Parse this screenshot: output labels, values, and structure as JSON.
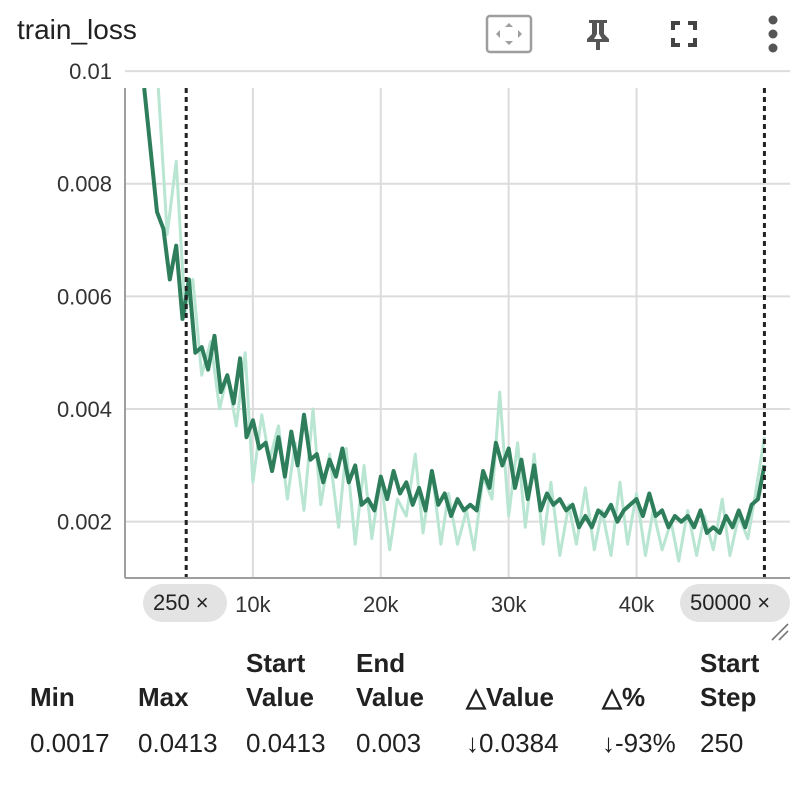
{
  "card": {
    "title": "train_loss",
    "icons": [
      "fit-domain-icon",
      "pin-icon",
      "fullscreen-icon",
      "more-vert-icon"
    ]
  },
  "chart_data": {
    "type": "line",
    "title": "train_loss",
    "xlabel": "",
    "ylabel": "",
    "xlim": [
      0,
      52000
    ],
    "ylim": [
      0.001,
      0.0097
    ],
    "x_ticks": [
      "10k",
      "20k",
      "30k",
      "40k"
    ],
    "y_ticks": [
      "0.002",
      "0.004",
      "0.006",
      "0.008",
      "0.01"
    ],
    "grid": true,
    "selection": {
      "start_step": 250,
      "end_step": 50000,
      "start_label": "250",
      "end_label": "50000",
      "close": "×"
    },
    "series": [
      {
        "role": "raw",
        "color": "#b9e5d3",
        "x": [
          2600,
          3300,
          4000,
          4700,
          5300,
          6000,
          6700,
          7400,
          8000,
          8700,
          9400,
          10000,
          10700,
          11300,
          12000,
          12700,
          13300,
          14000,
          14700,
          15300,
          16000,
          16700,
          17300,
          18000,
          18700,
          19300,
          20000,
          20700,
          21300,
          22000,
          22700,
          23300,
          24000,
          24700,
          25300,
          26000,
          26700,
          27300,
          28000,
          28700,
          29300,
          30000,
          30700,
          31300,
          32000,
          32700,
          33300,
          34000,
          34700,
          35300,
          36000,
          36700,
          37300,
          38000,
          38700,
          39300,
          40000,
          40700,
          41300,
          42000,
          42700,
          43300,
          44000,
          44700,
          45300,
          46000,
          46700,
          47300,
          48000,
          48700,
          49300,
          50000
        ],
        "y": [
          0.0097,
          0.0071,
          0.0084,
          0.0057,
          0.0063,
          0.0046,
          0.0052,
          0.004,
          0.0046,
          0.0037,
          0.005,
          0.0027,
          0.0039,
          0.0031,
          0.0037,
          0.0024,
          0.0034,
          0.0022,
          0.004,
          0.0023,
          0.0032,
          0.0019,
          0.0033,
          0.0016,
          0.003,
          0.0017,
          0.0028,
          0.0015,
          0.0024,
          0.0021,
          0.0032,
          0.0018,
          0.0029,
          0.0016,
          0.0025,
          0.0016,
          0.0022,
          0.0015,
          0.0028,
          0.0024,
          0.0043,
          0.0021,
          0.0034,
          0.0019,
          0.0032,
          0.0016,
          0.0027,
          0.0014,
          0.0023,
          0.0016,
          0.0026,
          0.0015,
          0.0022,
          0.0014,
          0.0027,
          0.0016,
          0.0025,
          0.0014,
          0.0022,
          0.0015,
          0.002,
          0.0013,
          0.0022,
          0.0014,
          0.0021,
          0.0015,
          0.0024,
          0.0014,
          0.0021,
          0.0017,
          0.0025,
          0.0035
        ]
      },
      {
        "role": "smoothed",
        "color": "#2e7d5b",
        "x": [
          1500,
          2500,
          3000,
          3500,
          4000,
          4500,
          5000,
          5500,
          6000,
          6500,
          7000,
          7500,
          8000,
          8500,
          9000,
          9500,
          10000,
          10500,
          11000,
          11500,
          12000,
          12500,
          13000,
          13500,
          14000,
          14500,
          15000,
          15500,
          16000,
          16500,
          17000,
          17500,
          18000,
          18500,
          19000,
          19500,
          20000,
          20500,
          21000,
          21500,
          22000,
          22500,
          23000,
          23500,
          24000,
          24500,
          25000,
          25500,
          26000,
          26500,
          27000,
          27500,
          28000,
          28500,
          29000,
          29500,
          30000,
          30500,
          31000,
          31500,
          32000,
          32500,
          33000,
          33500,
          34000,
          34500,
          35000,
          35500,
          36000,
          36500,
          37000,
          37500,
          38000,
          38500,
          39000,
          39500,
          40000,
          40500,
          41000,
          41500,
          42000,
          42500,
          43000,
          43500,
          44000,
          44500,
          45000,
          45500,
          46000,
          46500,
          47000,
          47500,
          48000,
          48500,
          49000,
          49500,
          50000
        ],
        "y": [
          0.0097,
          0.0075,
          0.0072,
          0.0063,
          0.0069,
          0.0056,
          0.0063,
          0.005,
          0.0051,
          0.0047,
          0.0053,
          0.0043,
          0.0046,
          0.0041,
          0.0049,
          0.0035,
          0.0038,
          0.0033,
          0.0034,
          0.0029,
          0.0035,
          0.0028,
          0.0036,
          0.003,
          0.0039,
          0.0031,
          0.0032,
          0.0027,
          0.0031,
          0.0028,
          0.0033,
          0.0027,
          0.003,
          0.0023,
          0.0024,
          0.0022,
          0.0028,
          0.0024,
          0.0029,
          0.0025,
          0.0027,
          0.0023,
          0.0026,
          0.0022,
          0.0029,
          0.0023,
          0.0025,
          0.0021,
          0.0024,
          0.0022,
          0.0023,
          0.0022,
          0.0029,
          0.0026,
          0.0034,
          0.003,
          0.0033,
          0.0026,
          0.0031,
          0.0024,
          0.003,
          0.0022,
          0.0025,
          0.0023,
          0.0024,
          0.0022,
          0.0023,
          0.0019,
          0.0021,
          0.0019,
          0.0022,
          0.0021,
          0.0023,
          0.002,
          0.0022,
          0.0023,
          0.0024,
          0.0021,
          0.0025,
          0.0021,
          0.0022,
          0.0019,
          0.0021,
          0.002,
          0.0021,
          0.0019,
          0.0022,
          0.0018,
          0.0019,
          0.0018,
          0.0021,
          0.0019,
          0.0022,
          0.0019,
          0.0023,
          0.0024,
          0.003
        ]
      }
    ]
  },
  "stats": {
    "headers": {
      "min": "Min",
      "max": "Max",
      "start_value": [
        "Start",
        "Value"
      ],
      "end_value": [
        "End",
        "Value"
      ],
      "delta_value": "△Value",
      "delta_pct": "△%",
      "start_step": [
        "Start",
        "Step"
      ]
    },
    "values": {
      "min": "0.0017",
      "max": "0.0413",
      "start_value": "0.0413",
      "end_value": "0.003",
      "delta_value": "↓0.0384",
      "delta_pct": "↓-93%",
      "start_step": "250"
    }
  }
}
